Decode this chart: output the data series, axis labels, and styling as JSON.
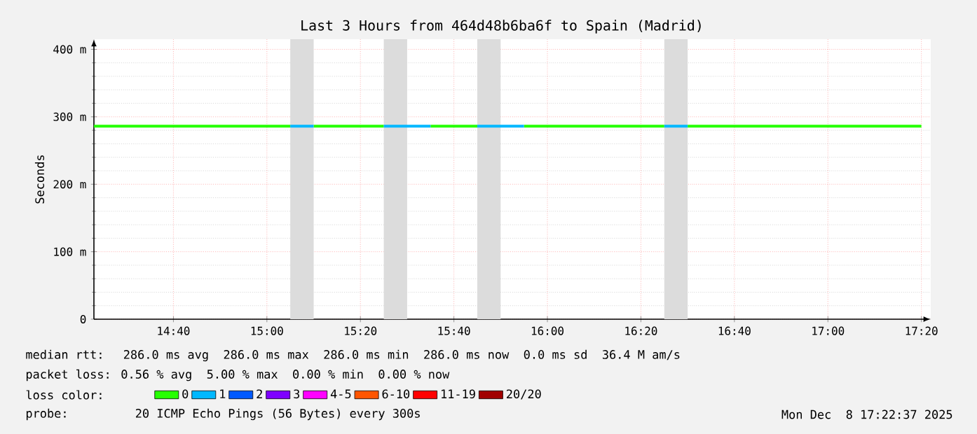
{
  "chart_data": {
    "type": "line",
    "title": "Last 3 Hours from 464d48b6ba6f to Spain (Madrid)",
    "ylabel": "Seconds",
    "xlim": [
      14.3833,
      17.3667
    ],
    "xticks": [
      {
        "value": 14.6667,
        "label": "14:40"
      },
      {
        "value": 15.0,
        "label": "15:00"
      },
      {
        "value": 15.3333,
        "label": "15:20"
      },
      {
        "value": 15.6667,
        "label": "15:40"
      },
      {
        "value": 16.0,
        "label": "16:00"
      },
      {
        "value": 16.3333,
        "label": "16:20"
      },
      {
        "value": 16.6667,
        "label": "16:40"
      },
      {
        "value": 17.0,
        "label": "17:00"
      },
      {
        "value": 17.3333,
        "label": "17:20"
      }
    ],
    "ylim": [
      0,
      415
    ],
    "yticks": [
      0,
      {
        "value": 100,
        "label": "100 m"
      },
      {
        "value": 200,
        "label": "200 m"
      },
      {
        "value": 300,
        "label": "300 m"
      },
      {
        "value": 400,
        "label": "400 m"
      }
    ],
    "grid": true,
    "legend": "bottom",
    "legend_title": "loss color:",
    "series": [
      {
        "name": "0",
        "color": "#26ff00",
        "x": [
          14.3833,
          15.0833,
          15.125,
          15.1667,
          15.4167,
          15.5,
          15.5833,
          15.75,
          15.8333,
          15.9167,
          16.4167,
          16.4583,
          16.5,
          17.3333
        ],
        "values": [
          286,
          286,
          null,
          286,
          286,
          null,
          286,
          286,
          null,
          286,
          286,
          null,
          286,
          286
        ]
      },
      {
        "name": "1",
        "color": "#00b8ff",
        "x": [
          15.0833,
          15.1667,
          15.2,
          15.4167,
          15.5833,
          15.65,
          15.75,
          15.9167,
          16.0,
          16.4167,
          16.5
        ],
        "values": [
          286,
          286,
          null,
          286,
          286,
          null,
          286,
          286,
          null,
          286,
          286
        ]
      },
      {
        "name": "2",
        "color": "#0059ff"
      },
      {
        "name": "3",
        "color": "#7e00ff"
      },
      {
        "name": "4-5",
        "color": "#ff00ff"
      },
      {
        "name": "6-10",
        "color": "#ff5500"
      },
      {
        "name": "11-19",
        "color": "#ff0000"
      },
      {
        "name": "20/20",
        "color": "#a10000"
      }
    ],
    "bands": [
      {
        "axis": "x",
        "from": 15.0833,
        "to": 15.1667,
        "color": "#dcdcdc"
      },
      {
        "axis": "x",
        "from": 15.4167,
        "to": 15.5,
        "color": "#dcdcdc"
      },
      {
        "axis": "x",
        "from": 15.75,
        "to": 15.8333,
        "color": "#dcdcdc"
      },
      {
        "axis": "x",
        "from": 16.4167,
        "to": 16.5,
        "color": "#dcdcdc"
      }
    ],
    "annotations": [
      "median rtt:  286.0 ms avg  286.0 ms max  286.0 ms min  286.0 ms now  0.0 ms sd  36.4 M am/s",
      "packet loss: 0.56 % avg  5.00 % max  0.00 % min  0.00 % now",
      "probe:       20 ICMP Echo Pings (56 Bytes) every 300s",
      "Mon Dec  8 17:22:37 2025"
    ]
  }
}
